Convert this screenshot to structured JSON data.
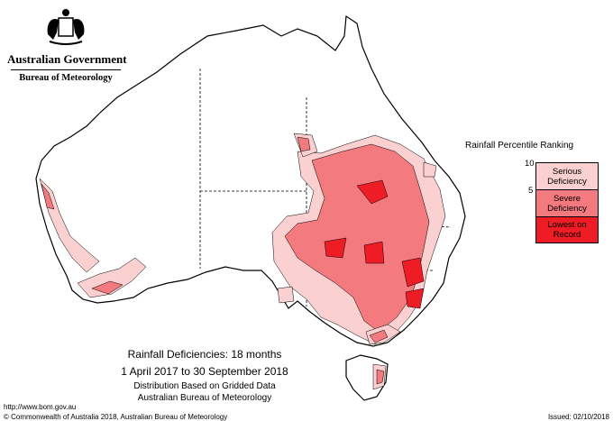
{
  "header": {
    "government": "Australian Government",
    "bureau": "Bureau of Meteorology"
  },
  "legend": {
    "title": "Rainfall Percentile Ranking",
    "ticks": [
      "10",
      "5"
    ],
    "items": [
      {
        "label": "Serious Deficiency",
        "color": "#fbd0d0"
      },
      {
        "label": "Severe Deficiency",
        "color": "#f37a7f"
      },
      {
        "label": "Lowest on Record",
        "color": "#ee1c24"
      }
    ]
  },
  "caption": {
    "title": "Rainfall Deficiencies: 18 months",
    "period": "1 April 2017 to 30 September 2018",
    "basis": "Distribution Based on Gridded Data",
    "agency": "Australian Bureau of Meteorology"
  },
  "footer": {
    "url": "http://www.bom.gov.au",
    "copyright": "© Commonwealth of Australia 2018, Australian Bureau of Meteorology",
    "issued": "Issued: 02/10/2018"
  },
  "colors": {
    "outline": "#000000",
    "land": "#ffffff",
    "border_dash": "#000000"
  }
}
